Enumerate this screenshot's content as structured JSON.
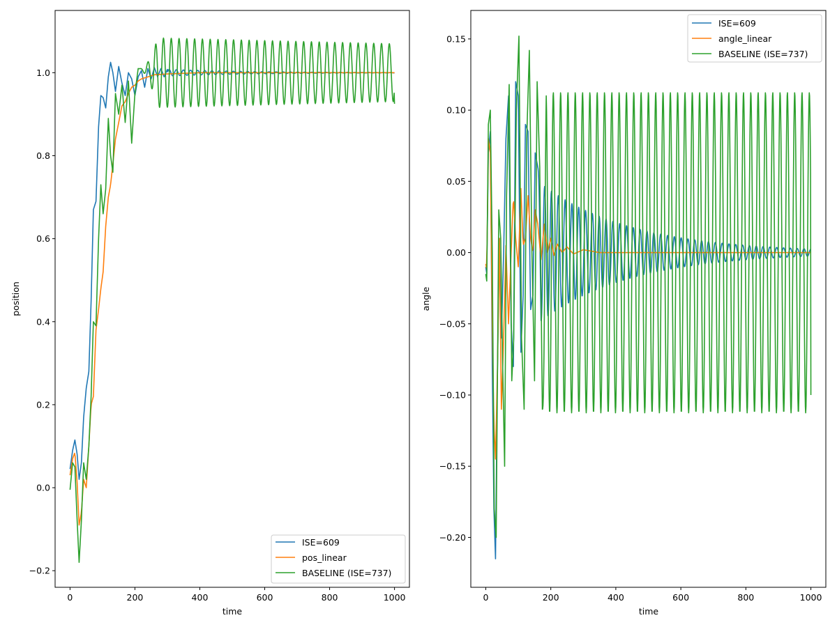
{
  "chart_data": [
    {
      "type": "line",
      "title": "",
      "xlabel": "time",
      "ylabel": "position",
      "xlim": [
        -46,
        1046
      ],
      "ylim": [
        -0.24,
        1.15
      ],
      "xticks": [
        0,
        200,
        400,
        600,
        800,
        1000
      ],
      "yticks": [
        -0.2,
        0.0,
        0.2,
        0.4,
        0.6,
        0.8,
        1.0
      ],
      "ytick_labels": [
        "−0.2",
        "0.0",
        "0.2",
        "0.4",
        "0.6",
        "0.8",
        "1.0"
      ],
      "legend_position": "lower-right",
      "series": [
        {
          "name": "ISE=609",
          "color": "#1f77b4",
          "x": [
            0,
            8,
            15,
            22,
            28,
            35,
            42,
            50,
            58,
            65,
            72,
            80,
            88,
            95,
            102,
            110,
            118,
            125,
            132,
            140,
            150,
            160,
            170,
            180,
            190,
            200,
            210,
            220,
            230,
            240,
            250,
            260,
            270,
            280,
            290,
            300,
            320,
            340,
            360,
            380,
            400,
            430,
            460,
            500,
            550,
            600,
            700,
            800,
            1000
          ],
          "y": [
            0.045,
            0.09,
            0.115,
            0.08,
            0.02,
            0.06,
            0.17,
            0.24,
            0.28,
            0.45,
            0.67,
            0.69,
            0.87,
            0.945,
            0.94,
            0.915,
            0.99,
            1.025,
            1.0,
            0.955,
            1.015,
            0.975,
            0.945,
            1.0,
            0.985,
            0.945,
            0.99,
            1.005,
            0.965,
            1.01,
            0.985,
            1.012,
            0.99,
            1.01,
            0.99,
            1.008,
            0.993,
            1.008,
            0.993,
            1.005,
            0.995,
            1.004,
            0.997,
            1.003,
            0.998,
            1.001,
            1.0,
            1.0,
            1.0
          ]
        },
        {
          "name": "pos_linear",
          "color": "#ff7f0e",
          "x": [
            0,
            8,
            15,
            22,
            28,
            35,
            42,
            50,
            58,
            65,
            72,
            80,
            88,
            95,
            102,
            110,
            118,
            125,
            132,
            140,
            150,
            160,
            170,
            180,
            190,
            200,
            210,
            220,
            240,
            260,
            300,
            400,
            600,
            800,
            1000
          ],
          "y": [
            0.03,
            0.07,
            0.085,
            0.01,
            -0.09,
            -0.06,
            0.02,
            0.0,
            0.1,
            0.2,
            0.22,
            0.38,
            0.43,
            0.48,
            0.52,
            0.63,
            0.7,
            0.73,
            0.78,
            0.84,
            0.88,
            0.92,
            0.93,
            0.95,
            0.965,
            0.97,
            0.98,
            0.985,
            0.99,
            0.995,
            0.997,
            1.0,
            1.0,
            1.0,
            1.0
          ]
        },
        {
          "name": "BASELINE (ISE=737)",
          "color": "#2ca02c",
          "baseline": 1.0,
          "early_x": [
            0,
            8,
            15,
            22,
            28,
            35,
            42,
            50,
            58,
            65,
            72,
            80,
            88,
            95,
            102,
            110,
            118,
            125,
            132,
            140,
            150,
            160,
            170,
            180,
            190,
            200,
            210
          ],
          "early_y": [
            -0.005,
            0.06,
            0.05,
            -0.08,
            -0.18,
            -0.08,
            0.06,
            0.02,
            0.1,
            0.22,
            0.4,
            0.39,
            0.6,
            0.73,
            0.66,
            0.72,
            0.89,
            0.8,
            0.76,
            0.95,
            0.9,
            0.97,
            0.88,
            0.98,
            0.83,
            0.95,
            1.01
          ],
          "osc_period": 24,
          "osc_amplitude_start": 0.1,
          "osc_amplitude_end": 0.082,
          "end_value": 0.925
        }
      ]
    },
    {
      "type": "line",
      "title": "",
      "xlabel": "time",
      "ylabel": "angle",
      "xlim": [
        -46,
        1046
      ],
      "ylim": [
        -0.235,
        0.17
      ],
      "xticks": [
        0,
        200,
        400,
        600,
        800,
        1000
      ],
      "yticks": [
        -0.2,
        -0.15,
        -0.1,
        -0.05,
        0.0,
        0.05,
        0.1,
        0.15
      ],
      "ytick_labels": [
        "−0.20",
        "−0.15",
        "−0.10",
        "−0.05",
        "0.00",
        "0.05",
        "0.10",
        "0.15"
      ],
      "legend_position": "upper-right",
      "series": [
        {
          "name": "ISE=609",
          "color": "#1f77b4",
          "x": [
            0,
            3,
            8,
            14,
            20,
            25,
            30,
            35,
            42,
            48,
            55,
            62,
            70,
            78,
            85,
            92,
            100,
            108,
            115,
            122,
            130,
            138,
            145,
            152,
            160
          ],
          "y": [
            -0.01,
            -0.015,
            0.07,
            0.085,
            -0.08,
            -0.18,
            -0.215,
            -0.1,
            0.01,
            -0.06,
            0.0,
            0.08,
            0.11,
            -0.05,
            -0.08,
            0.12,
            0.11,
            -0.07,
            -0.03,
            0.09,
            0.085,
            -0.04,
            -0.03,
            0.07,
            0.06
          ],
          "osc_from": 160,
          "osc_period": 21,
          "osc_amplitude_start": 0.05,
          "osc_decay": 280
        },
        {
          "name": "angle_linear",
          "color": "#ff7f0e",
          "x": [
            0,
            3,
            8,
            14,
            20,
            25,
            30,
            36,
            42,
            48,
            55,
            62,
            70,
            78,
            85,
            92,
            100,
            108,
            115,
            122,
            130,
            138,
            145,
            152,
            160,
            170,
            180,
            190,
            200,
            210,
            220,
            235,
            250,
            270,
            300,
            350,
            400,
            500,
            1000
          ],
          "y": [
            -0.008,
            -0.012,
            0.08,
            0.07,
            -0.05,
            -0.12,
            -0.145,
            -0.08,
            0.01,
            -0.11,
            -0.06,
            0.005,
            -0.05,
            0.0,
            0.04,
            0.01,
            -0.01,
            0.045,
            0.005,
            0.01,
            0.04,
            0.01,
            0.0,
            0.03,
            0.02,
            -0.005,
            0.02,
            0.0,
            0.01,
            -0.002,
            0.006,
            0.0,
            0.004,
            -0.001,
            0.002,
            0.0,
            0.0,
            0.0,
            0.0
          ]
        },
        {
          "name": "BASELINE (ISE=737)",
          "color": "#2ca02c",
          "x": [
            0,
            3,
            8,
            14,
            20,
            26,
            32,
            40,
            46,
            52,
            58,
            64,
            72,
            80,
            86,
            94,
            102,
            110,
            118,
            126,
            134,
            142,
            150,
            158,
            166,
            174
          ],
          "y": [
            -0.015,
            -0.02,
            0.09,
            0.1,
            0.0,
            -0.18,
            -0.2,
            0.03,
            0.01,
            -0.08,
            -0.15,
            0.04,
            0.118,
            -0.09,
            -0.06,
            0.1,
            0.152,
            -0.06,
            -0.11,
            0.08,
            0.142,
            0.0,
            -0.09,
            0.12,
            0.06,
            -0.11
          ],
          "osc_from": 174,
          "osc_period": 22.5,
          "osc_amplitude": 0.1125,
          "end_value": -0.1
        }
      ]
    }
  ]
}
